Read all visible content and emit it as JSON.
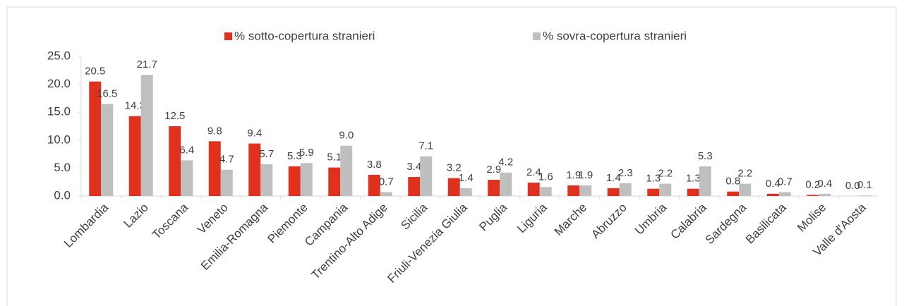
{
  "chart_data": {
    "type": "bar",
    "categories": [
      "Lombardia",
      "Lazio",
      "Toscana",
      "Veneto",
      "Emilia-Romagna",
      "Piemonte",
      "Campania",
      "Trentino-Alto Adige",
      "Sicilia",
      "Friuli-Venezia Giulia",
      "Puglia",
      "Liguria",
      "Marche",
      "Abruzzo",
      "Umbria",
      "Calabria",
      "Sardegna",
      "Basilicata",
      "Molise",
      "Valle d'Aosta"
    ],
    "series": [
      {
        "name": "% sotto-copertura stranieri",
        "color": "#e0301e",
        "values": [
          20.5,
          14.3,
          12.5,
          9.8,
          9.4,
          5.3,
          5.1,
          3.8,
          3.4,
          3.2,
          2.9,
          2.4,
          1.9,
          1.4,
          1.3,
          1.3,
          0.8,
          0.4,
          0.2,
          0
        ],
        "value_labels": [
          "20.5",
          "14.3",
          "12.5",
          "9.8",
          "9.4",
          "5.3",
          "5.1",
          "3.8",
          "3.4",
          "3.2",
          "2.9",
          "2.4",
          "1.9",
          "1.4",
          "1.3",
          "1.3",
          "0.8",
          "0.4",
          "0.2",
          "0.0"
        ]
      },
      {
        "name": "% sovra-copertura stranieri",
        "color": "#bfbfbf",
        "values": [
          16.5,
          21.7,
          6.4,
          4.7,
          5.7,
          5.9,
          9,
          0.7,
          7.1,
          1.4,
          4.2,
          1.6,
          1.9,
          2.3,
          2.2,
          5.3,
          2.2,
          0.7,
          0.4,
          0.1
        ],
        "value_labels": [
          "16.5",
          "21.7",
          "6.4",
          "4.7",
          "5.7",
          "5.9",
          "9.0",
          "0.7",
          "7.1",
          "1.4",
          "4.2",
          "1.6",
          "1.9",
          "2.3",
          "2.2",
          "5.3",
          "2.2",
          "0.7",
          "0.4",
          "0.1"
        ]
      }
    ],
    "ylim": [
      0,
      25
    ],
    "yticks": [
      {
        "value": 0,
        "label": "0.0"
      },
      {
        "value": 5,
        "label": "5.0"
      },
      {
        "value": 10,
        "label": "10.0"
      },
      {
        "value": 15,
        "label": "15.0"
      },
      {
        "value": 20,
        "label": "20.0"
      },
      {
        "value": 25,
        "label": "25.0"
      }
    ],
    "legend": "top"
  }
}
